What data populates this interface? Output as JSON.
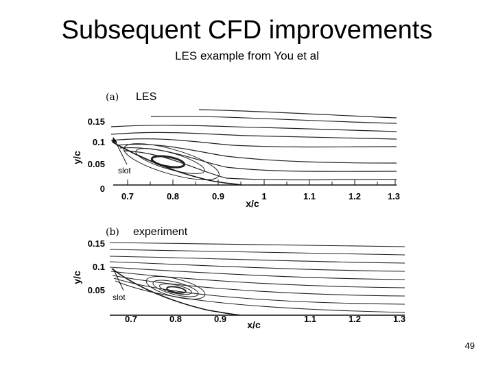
{
  "slide": {
    "title": "Subsequent CFD improvements",
    "subtitle": "LES example from You et al",
    "page_number": "49"
  },
  "panels": [
    {
      "label": "(a)",
      "name": "LES",
      "x_axis_title": "x/c",
      "y_axis_title": "y/c",
      "x_ticks": [
        "0.7",
        "0.8",
        "0.9",
        "1",
        "1.1",
        "1.2",
        "1.3"
      ],
      "y_ticks": [
        "0.15",
        "0.1",
        "0.05",
        "0"
      ],
      "annotation": "slot"
    },
    {
      "label": "(b)",
      "name": "experiment",
      "x_axis_title": "x/c",
      "y_axis_title": "y/c",
      "x_ticks": [
        "0.7",
        "0.8",
        "0.9",
        "1.1",
        "1.2",
        "1.3"
      ],
      "y_ticks": [
        "0.15",
        "0.1",
        "0.05"
      ],
      "annotation": "slot"
    }
  ],
  "chart_data": [
    {
      "type": "line",
      "subtitle": "LES",
      "xlabel": "x/c",
      "ylabel": "y/c",
      "xlim": [
        0.65,
        1.3
      ],
      "ylim": [
        0,
        0.17
      ],
      "xticks": [
        0.7,
        0.8,
        0.9,
        1,
        1.1,
        1.2,
        1.3
      ],
      "yticks": [
        0,
        0.05,
        0.1,
        0.15
      ],
      "annotations": [
        "slot"
      ]
    },
    {
      "type": "line",
      "subtitle": "experiment",
      "xlabel": "x/c",
      "ylabel": "y/c",
      "xlim": [
        0.65,
        1.3
      ],
      "ylim": [
        0,
        0.17
      ],
      "xticks": [
        0.7,
        0.8,
        0.9,
        1.1,
        1.2,
        1.3
      ],
      "yticks": [
        0.05,
        0.1,
        0.15
      ],
      "annotations": [
        "slot"
      ]
    }
  ]
}
